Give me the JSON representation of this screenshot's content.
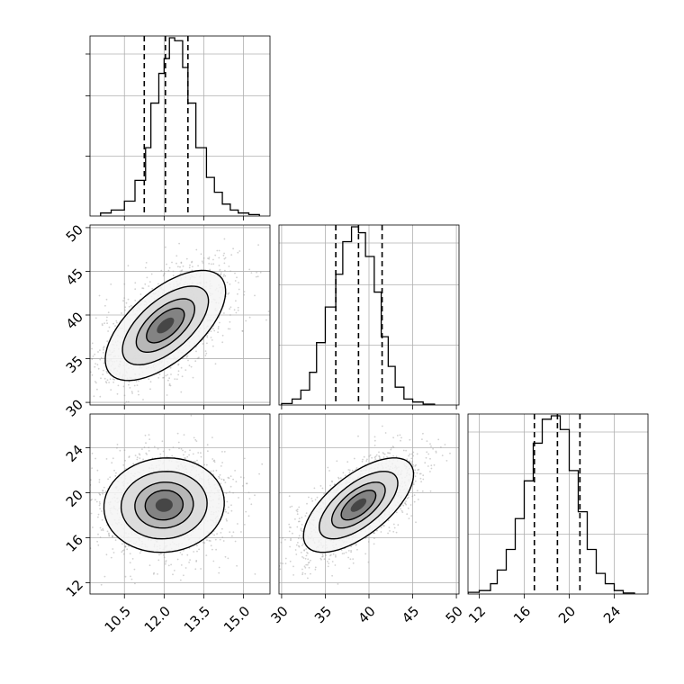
{
  "chart_data": {
    "type": "corner",
    "title": "",
    "parameters": [
      {
        "index": 0,
        "xlim": [
          9.2,
          16.0
        ],
        "ticks": [
          10.5,
          12.0,
          13.5,
          15.0
        ],
        "tick_labels": [
          "10.5",
          "12.0",
          "13.5",
          "15.0"
        ],
        "quantiles": [
          11.25,
          12.05,
          12.9
        ],
        "hist_edges": [
          9.6,
          10.0,
          10.5,
          10.9,
          11.3,
          11.5,
          11.8,
          12.0,
          12.2,
          12.4,
          12.7,
          12.9,
          13.2,
          13.6,
          13.9,
          14.2,
          14.5,
          14.8,
          15.2,
          15.6
        ],
        "hist_counts": [
          1,
          2,
          5,
          12,
          23,
          38,
          48,
          53,
          60,
          59,
          50,
          38,
          23,
          13,
          8,
          4,
          2,
          1,
          0.5
        ]
      },
      {
        "index": 1,
        "xlim": [
          29.7,
          50.3
        ],
        "ticks": [
          30,
          35,
          40,
          45,
          50
        ],
        "tick_labels": [
          "30",
          "35",
          "40",
          "45",
          "50"
        ],
        "quantiles": [
          36.2,
          38.8,
          41.5
        ],
        "hist_edges": [
          30.0,
          31.2,
          32.2,
          33.2,
          34.0,
          35.0,
          36.2,
          37.0,
          38.0,
          38.8,
          39.6,
          40.6,
          41.4,
          42.2,
          43.0,
          44.0,
          45.0,
          46.2,
          47.5
        ],
        "hist_counts": [
          0.5,
          2,
          5,
          11,
          21,
          33,
          44,
          55,
          60,
          58,
          50,
          38,
          23,
          13,
          6,
          2,
          1,
          0.3
        ]
      },
      {
        "index": 2,
        "xlim": [
          11.0,
          27.0
        ],
        "ticks": [
          12,
          16,
          20,
          24
        ],
        "tick_labels": [
          "12",
          "16",
          "20",
          "24"
        ],
        "quantiles": [
          16.9,
          18.95,
          20.95
        ],
        "hist_edges": [
          11.0,
          12.0,
          13.0,
          13.6,
          14.4,
          15.2,
          16.0,
          16.8,
          17.6,
          18.4,
          19.2,
          20.0,
          20.8,
          21.6,
          22.4,
          23.2,
          24.0,
          24.8,
          25.8
        ],
        "hist_counts": [
          0.5,
          1,
          3,
          7,
          13,
          22,
          33,
          44,
          51,
          52,
          48,
          36,
          24,
          13,
          6,
          3,
          1,
          0.3
        ]
      }
    ],
    "pairs": [
      {
        "x": 0,
        "y": 1,
        "mean": [
          12.05,
          38.8
        ],
        "sd": [
          1.3,
          3.6
        ],
        "rho": 0.62,
        "levels": [
          0.25,
          0.55,
          0.85,
          1.25,
          1.75
        ]
      },
      {
        "x": 0,
        "y": 2,
        "mean": [
          12.0,
          18.9
        ],
        "sd": [
          1.3,
          2.4
        ],
        "rho": 0.05,
        "levels": [
          0.25,
          0.55,
          0.85,
          1.25,
          1.75
        ]
      },
      {
        "x": 1,
        "y": 2,
        "mean": [
          38.8,
          18.9
        ],
        "sd": [
          3.6,
          2.4
        ],
        "rho": 0.65,
        "levels": [
          0.25,
          0.55,
          0.85,
          1.25,
          1.75
        ]
      }
    ],
    "grid": true,
    "quantile_style": "dashed"
  }
}
